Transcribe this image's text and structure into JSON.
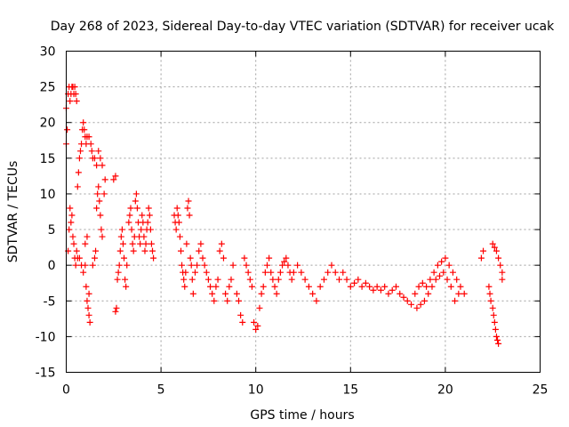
{
  "chart_data": {
    "type": "scatter",
    "title": "Day 268 of 2023, Sidereal Day-to-day VTEC variation (SDTVAR) for receiver ucak",
    "xlabel": "GPS time / hours",
    "ylabel": "SDTVAR / TECUs",
    "xlim": [
      0,
      25
    ],
    "ylim": [
      -15,
      30
    ],
    "xticks": [
      0,
      5,
      10,
      15,
      20,
      25
    ],
    "yticks": [
      -15,
      -10,
      -5,
      0,
      5,
      10,
      15,
      20,
      25,
      30
    ],
    "xtick_labels": [
      "0",
      "5",
      "10",
      "15",
      "20",
      "25"
    ],
    "ytick_labels": [
      "-15",
      "-10",
      "-5",
      "0",
      "5",
      "10",
      "15",
      "20",
      "25",
      "30"
    ],
    "grid": true,
    "marker": "+",
    "marker_color": "#ff0000",
    "series": [
      {
        "name": "SDTVAR",
        "points": [
          [
            0.0,
            17
          ],
          [
            0.0,
            22
          ],
          [
            0.05,
            19
          ],
          [
            0.1,
            24
          ],
          [
            0.15,
            25
          ],
          [
            0.2,
            23
          ],
          [
            0.25,
            24
          ],
          [
            0.3,
            25
          ],
          [
            0.35,
            25
          ],
          [
            0.4,
            24
          ],
          [
            0.45,
            25
          ],
          [
            0.5,
            24
          ],
          [
            0.55,
            23
          ],
          [
            0.1,
            2
          ],
          [
            0.15,
            5
          ],
          [
            0.2,
            8
          ],
          [
            0.25,
            6
          ],
          [
            0.3,
            7
          ],
          [
            0.35,
            4
          ],
          [
            0.4,
            3
          ],
          [
            0.45,
            1
          ],
          [
            0.5,
            0
          ],
          [
            0.55,
            2
          ],
          [
            0.6,
            1
          ],
          [
            0.6,
            11
          ],
          [
            0.65,
            13
          ],
          [
            0.7,
            15
          ],
          [
            0.75,
            16
          ],
          [
            0.8,
            17
          ],
          [
            0.85,
            19
          ],
          [
            0.9,
            20
          ],
          [
            0.95,
            19
          ],
          [
            1.0,
            18
          ],
          [
            1.05,
            17
          ],
          [
            1.1,
            18
          ],
          [
            1.2,
            18
          ],
          [
            0.7,
            1
          ],
          [
            0.8,
            0
          ],
          [
            0.9,
            -1
          ],
          [
            1.0,
            0
          ],
          [
            1.05,
            -3
          ],
          [
            1.1,
            -5
          ],
          [
            1.15,
            -6
          ],
          [
            1.2,
            -7
          ],
          [
            1.25,
            -8
          ],
          [
            1.2,
            -4
          ],
          [
            1.0,
            3
          ],
          [
            1.1,
            4
          ],
          [
            1.3,
            17
          ],
          [
            1.35,
            16
          ],
          [
            1.4,
            15
          ],
          [
            1.5,
            15
          ],
          [
            1.6,
            14
          ],
          [
            1.7,
            16
          ],
          [
            1.8,
            15
          ],
          [
            1.9,
            14
          ],
          [
            1.6,
            8
          ],
          [
            1.65,
            10
          ],
          [
            1.7,
            11
          ],
          [
            1.75,
            9
          ],
          [
            1.8,
            7
          ],
          [
            1.85,
            5
          ],
          [
            1.9,
            4
          ],
          [
            2.0,
            10
          ],
          [
            2.05,
            12
          ],
          [
            1.5,
            1
          ],
          [
            1.55,
            2
          ],
          [
            1.4,
            0
          ],
          [
            2.6,
            -6.5
          ],
          [
            2.65,
            -6
          ],
          [
            2.5,
            12
          ],
          [
            2.6,
            12.5
          ],
          [
            2.7,
            -2
          ],
          [
            2.75,
            -1
          ],
          [
            2.8,
            0
          ],
          [
            2.85,
            2
          ],
          [
            2.9,
            4
          ],
          [
            2.95,
            5
          ],
          [
            3.0,
            3
          ],
          [
            3.05,
            1
          ],
          [
            3.1,
            -2
          ],
          [
            3.15,
            -3
          ],
          [
            3.2,
            0
          ],
          [
            3.3,
            6
          ],
          [
            3.35,
            7
          ],
          [
            3.4,
            8
          ],
          [
            3.45,
            5
          ],
          [
            3.5,
            3
          ],
          [
            3.55,
            2
          ],
          [
            3.6,
            4
          ],
          [
            3.65,
            9
          ],
          [
            3.7,
            10
          ],
          [
            3.75,
            8
          ],
          [
            3.8,
            6
          ],
          [
            3.85,
            4
          ],
          [
            3.9,
            3
          ],
          [
            3.95,
            5
          ],
          [
            4.0,
            7
          ],
          [
            4.05,
            6
          ],
          [
            4.1,
            4
          ],
          [
            4.15,
            2
          ],
          [
            4.2,
            3
          ],
          [
            4.25,
            5
          ],
          [
            4.3,
            6
          ],
          [
            4.35,
            8
          ],
          [
            4.4,
            7
          ],
          [
            4.45,
            5
          ],
          [
            4.5,
            3
          ],
          [
            4.55,
            2
          ],
          [
            4.6,
            1
          ],
          [
            5.7,
            7
          ],
          [
            5.75,
            6
          ],
          [
            5.8,
            5
          ],
          [
            5.85,
            8
          ],
          [
            5.9,
            7
          ],
          [
            5.95,
            6
          ],
          [
            6.0,
            4
          ],
          [
            6.05,
            2
          ],
          [
            6.1,
            0
          ],
          [
            6.15,
            -1
          ],
          [
            6.2,
            -2
          ],
          [
            6.25,
            -3
          ],
          [
            6.3,
            -1
          ],
          [
            6.35,
            3
          ],
          [
            6.4,
            8
          ],
          [
            6.45,
            9
          ],
          [
            6.5,
            7
          ],
          [
            6.55,
            1
          ],
          [
            6.6,
            0
          ],
          [
            6.65,
            -2
          ],
          [
            6.7,
            -4
          ],
          [
            6.8,
            -1
          ],
          [
            6.9,
            0
          ],
          [
            7.0,
            2
          ],
          [
            7.1,
            3
          ],
          [
            7.2,
            1
          ],
          [
            7.3,
            0
          ],
          [
            7.4,
            -1
          ],
          [
            7.5,
            -2
          ],
          [
            7.6,
            -3
          ],
          [
            7.7,
            -4
          ],
          [
            7.8,
            -5
          ],
          [
            7.9,
            -3
          ],
          [
            8.0,
            -2
          ],
          [
            8.1,
            2
          ],
          [
            8.2,
            3
          ],
          [
            8.3,
            1
          ],
          [
            8.4,
            -4
          ],
          [
            8.5,
            -5
          ],
          [
            8.6,
            -3
          ],
          [
            8.7,
            -2
          ],
          [
            8.8,
            0
          ],
          [
            9.0,
            -4
          ],
          [
            9.1,
            -5
          ],
          [
            9.2,
            -7
          ],
          [
            9.3,
            -8
          ],
          [
            9.4,
            1
          ],
          [
            9.5,
            0
          ],
          [
            9.6,
            -1
          ],
          [
            9.7,
            -2
          ],
          [
            9.8,
            -3
          ],
          [
            9.9,
            -8
          ],
          [
            10.0,
            -9
          ],
          [
            10.1,
            -8.5
          ],
          [
            10.2,
            -6
          ],
          [
            10.3,
            -4
          ],
          [
            10.4,
            -3
          ],
          [
            10.5,
            -1
          ],
          [
            10.6,
            0
          ],
          [
            10.7,
            1
          ],
          [
            10.8,
            -1
          ],
          [
            10.9,
            -2
          ],
          [
            11.0,
            -3
          ],
          [
            11.1,
            -4
          ],
          [
            11.2,
            -2
          ],
          [
            11.3,
            -1
          ],
          [
            11.4,
            0
          ],
          [
            11.5,
            0.5
          ],
          [
            11.6,
            1
          ],
          [
            11.7,
            0
          ],
          [
            11.8,
            -1
          ],
          [
            11.9,
            -2
          ],
          [
            12.0,
            -1
          ],
          [
            12.2,
            0
          ],
          [
            12.4,
            -1
          ],
          [
            12.6,
            -2
          ],
          [
            12.8,
            -3
          ],
          [
            13.0,
            -4
          ],
          [
            13.2,
            -5
          ],
          [
            13.4,
            -3
          ],
          [
            13.6,
            -2
          ],
          [
            13.8,
            -1
          ],
          [
            14.0,
            0
          ],
          [
            14.2,
            -1
          ],
          [
            14.4,
            -2
          ],
          [
            14.6,
            -1
          ],
          [
            14.8,
            -2
          ],
          [
            15.0,
            -3
          ],
          [
            15.2,
            -2.5
          ],
          [
            15.4,
            -2
          ],
          [
            15.6,
            -3
          ],
          [
            15.8,
            -2.5
          ],
          [
            16.0,
            -3
          ],
          [
            16.2,
            -3.5
          ],
          [
            16.4,
            -3
          ],
          [
            16.6,
            -3.5
          ],
          [
            16.8,
            -3
          ],
          [
            17.0,
            -4
          ],
          [
            17.2,
            -3.5
          ],
          [
            17.4,
            -3
          ],
          [
            17.6,
            -4
          ],
          [
            17.8,
            -4.5
          ],
          [
            18.0,
            -5
          ],
          [
            18.2,
            -5.5
          ],
          [
            18.4,
            -4
          ],
          [
            18.6,
            -3
          ],
          [
            18.8,
            -2.5
          ],
          [
            19.0,
            -3
          ],
          [
            19.2,
            -2
          ],
          [
            19.4,
            -1
          ],
          [
            19.6,
            0
          ],
          [
            19.8,
            0.5
          ],
          [
            20.0,
            1
          ],
          [
            20.2,
            0
          ],
          [
            20.4,
            -1
          ],
          [
            20.6,
            -2
          ],
          [
            20.8,
            -3
          ],
          [
            21.0,
            -4
          ],
          [
            18.5,
            -6
          ],
          [
            18.7,
            -5.5
          ],
          [
            18.9,
            -5
          ],
          [
            19.1,
            -4
          ],
          [
            19.3,
            -3
          ],
          [
            19.5,
            -2
          ],
          [
            19.7,
            -1.5
          ],
          [
            19.9,
            -1
          ],
          [
            20.1,
            -2
          ],
          [
            20.3,
            -3
          ],
          [
            20.5,
            -5
          ],
          [
            20.7,
            -4
          ],
          [
            21.9,
            1
          ],
          [
            22.0,
            2
          ],
          [
            22.5,
            3
          ],
          [
            22.6,
            2.5
          ],
          [
            22.7,
            2
          ],
          [
            22.8,
            1
          ],
          [
            22.9,
            0
          ],
          [
            23.0,
            -1
          ],
          [
            23.0,
            -2
          ],
          [
            22.3,
            -3
          ],
          [
            22.35,
            -4
          ],
          [
            22.4,
            -5
          ],
          [
            22.5,
            -6
          ],
          [
            22.55,
            -7
          ],
          [
            22.6,
            -8
          ],
          [
            22.65,
            -9
          ],
          [
            22.7,
            -10
          ],
          [
            22.75,
            -10.5
          ],
          [
            22.8,
            -11
          ]
        ]
      }
    ]
  }
}
